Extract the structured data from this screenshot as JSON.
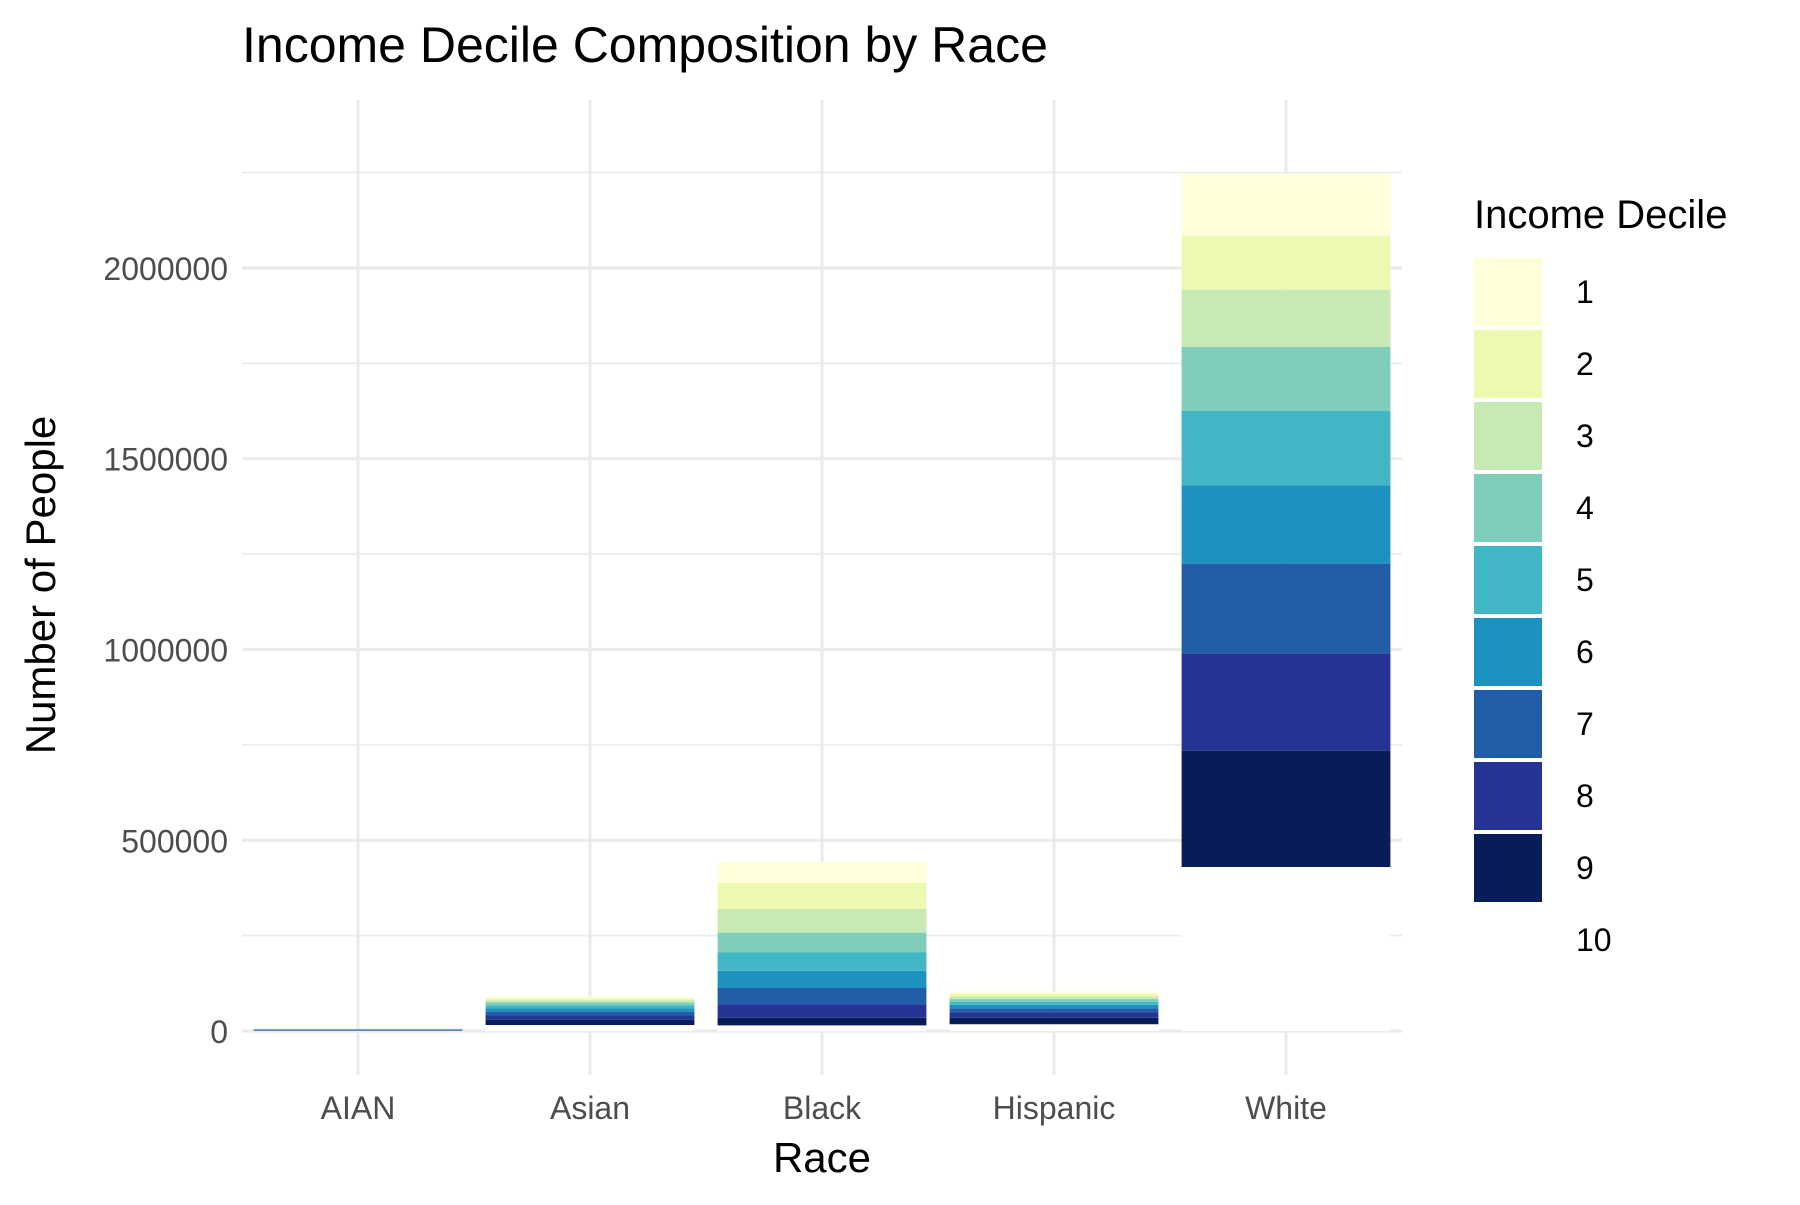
{
  "chart_data": {
    "type": "bar",
    "stacked": true,
    "title": "Income Decile Composition by Race",
    "xlabel": "Race",
    "ylabel": "Number of People",
    "categories": [
      "AIAN",
      "Asian",
      "Black",
      "Hispanic",
      "White"
    ],
    "yticks": [
      0,
      500000,
      1000000,
      1500000,
      2000000
    ],
    "ytick_labels": [
      "0",
      "500000",
      "1000000",
      "1500000",
      "2000000"
    ],
    "ylim": [
      -115000,
      2440000
    ],
    "grid": true,
    "legend": {
      "title": "Income Decile",
      "position": "right",
      "entries": [
        "1",
        "2",
        "3",
        "4",
        "5",
        "6",
        "7",
        "8",
        "9",
        "10"
      ]
    },
    "colors": [
      "#ffffd9",
      "#edf8b1",
      "#c7e9b4",
      "#7fcdbb",
      "#41b6c4",
      "#1d91c0",
      "#225ea8",
      "#253494",
      "#081d58",
      "#ffffff"
    ],
    "series": [
      {
        "name": "1",
        "values": [
          200,
          5000,
          55000,
          6000,
          165000
        ]
      },
      {
        "name": "2",
        "values": [
          300,
          5000,
          68000,
          7000,
          140000
        ]
      },
      {
        "name": "3",
        "values": [
          400,
          6000,
          62000,
          7000,
          150000
        ]
      },
      {
        "name": "4",
        "values": [
          500,
          7000,
          52000,
          7000,
          168000
        ]
      },
      {
        "name": "5",
        "values": [
          600,
          8000,
          48000,
          8000,
          195000
        ]
      },
      {
        "name": "6",
        "values": [
          700,
          9000,
          45000,
          9000,
          205000
        ]
      },
      {
        "name": "7",
        "values": [
          800,
          10000,
          43000,
          11000,
          235000
        ]
      },
      {
        "name": "8",
        "values": [
          900,
          11000,
          35000,
          14000,
          255000
        ]
      },
      {
        "name": "9",
        "values": [
          1000,
          14000,
          20000,
          17000,
          305000
        ]
      },
      {
        "name": "10",
        "values": [
          1100,
          16000,
          15000,
          18000,
          430000
        ]
      }
    ]
  }
}
